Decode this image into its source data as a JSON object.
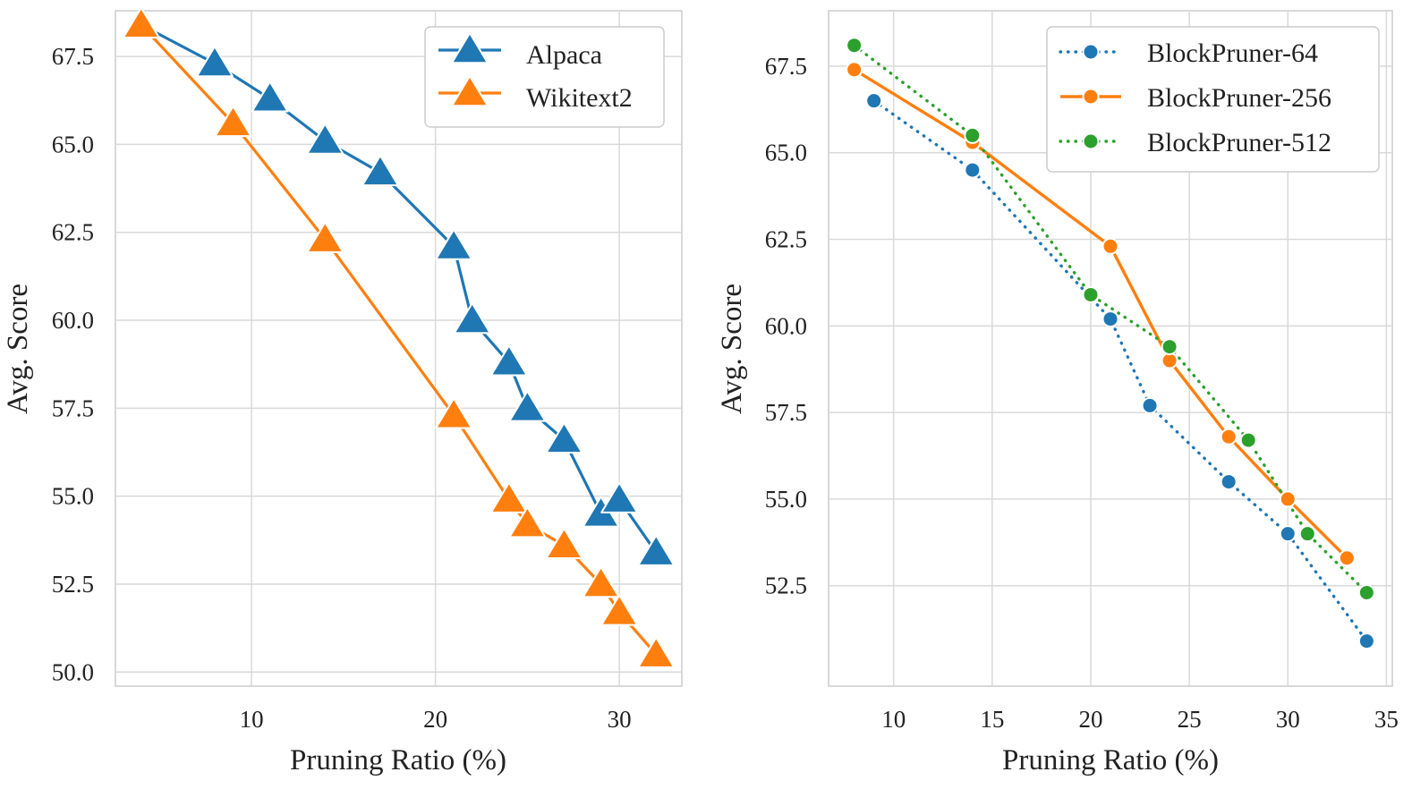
{
  "chart_data": [
    {
      "type": "line",
      "title": "",
      "xlabel": "Pruning Ratio (%)",
      "ylabel": "Avg. Score",
      "xlim": [
        2.6,
        33.4
      ],
      "ylim": [
        49.6,
        68.8
      ],
      "xticks": [
        10,
        20,
        30
      ],
      "yticks": [
        50.0,
        52.5,
        55.0,
        57.5,
        60.0,
        62.5,
        65.0,
        67.5
      ],
      "xtick_labels": [
        "10",
        "20",
        "30"
      ],
      "ytick_labels": [
        "50.0",
        "52.5",
        "55.0",
        "57.5",
        "60.0",
        "62.5",
        "65.0",
        "67.5"
      ],
      "grid": true,
      "legend_position": "top-right",
      "series": [
        {
          "name": "Alpaca",
          "color": "#1f77b4",
          "marker": "triangle",
          "linestyle": "solid",
          "x": [
            4,
            8,
            11,
            14,
            17,
            21,
            22,
            24,
            25,
            27,
            29,
            30,
            32
          ],
          "y": [
            68.4,
            67.3,
            66.3,
            65.1,
            64.2,
            62.1,
            60.0,
            58.8,
            57.5,
            56.6,
            54.5,
            54.9,
            53.4
          ]
        },
        {
          "name": "Wikitext2",
          "color": "#ff7f0e",
          "marker": "triangle",
          "linestyle": "solid",
          "x": [
            4,
            9,
            14,
            21,
            24,
            25,
            27,
            29,
            30,
            32
          ],
          "y": [
            68.4,
            65.6,
            62.3,
            57.3,
            54.9,
            54.2,
            53.6,
            52.5,
            51.7,
            50.5
          ]
        }
      ]
    },
    {
      "type": "line",
      "title": "",
      "xlabel": "Pruning Ratio (%)",
      "ylabel": "Avg. Score",
      "xlim": [
        6.7,
        35.3
      ],
      "ylim": [
        49.6,
        69.1
      ],
      "xticks": [
        10,
        15,
        20,
        25,
        30,
        35
      ],
      "yticks": [
        52.5,
        55.0,
        57.5,
        60.0,
        62.5,
        65.0,
        67.5
      ],
      "xtick_labels": [
        "10",
        "15",
        "20",
        "25",
        "30",
        "35"
      ],
      "ytick_labels": [
        "52.5",
        "55.0",
        "57.5",
        "60.0",
        "62.5",
        "65.0",
        "67.5"
      ],
      "grid": true,
      "legend_position": "top-right",
      "series": [
        {
          "name": "BlockPruner-64",
          "color": "#1f77b4",
          "marker": "circle",
          "linestyle": "dotted",
          "x": [
            9,
            14,
            21,
            23,
            27,
            30,
            34
          ],
          "y": [
            66.5,
            64.5,
            60.2,
            57.7,
            55.5,
            54.0,
            50.9
          ]
        },
        {
          "name": "BlockPruner-256",
          "color": "#ff7f0e",
          "marker": "circle",
          "linestyle": "solid",
          "x": [
            8,
            14,
            21,
            24,
            27,
            30,
            33
          ],
          "y": [
            67.4,
            65.3,
            62.3,
            59.0,
            56.8,
            55.0,
            53.3
          ]
        },
        {
          "name": "BlockPruner-512",
          "color": "#2ca02c",
          "marker": "circle",
          "linestyle": "dotted",
          "x": [
            8,
            14,
            20,
            24,
            28,
            31,
            34
          ],
          "y": [
            68.1,
            65.5,
            60.9,
            59.4,
            56.7,
            54.0,
            52.3
          ]
        }
      ]
    }
  ]
}
